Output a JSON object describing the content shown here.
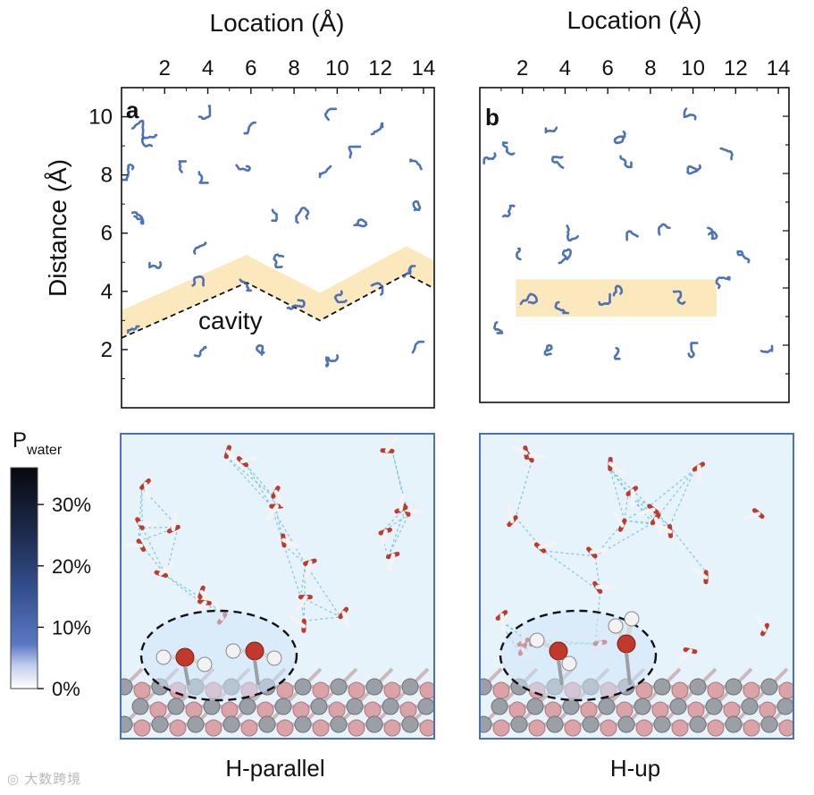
{
  "top_axis_title": "Location (Å)",
  "left_axis_title": "Distance (Å)",
  "panel_a": {
    "letter": "a",
    "x_ticks": [
      "2",
      "4",
      "6",
      "8",
      "10",
      "12",
      "14"
    ],
    "y_ticks": [
      "2",
      "4",
      "6",
      "8",
      "10"
    ],
    "annotation": "cavity"
  },
  "panel_b": {
    "letter": "b",
    "x_ticks": [
      "2",
      "4",
      "6",
      "8",
      "10",
      "12",
      "14"
    ]
  },
  "colorbar": {
    "title": "P",
    "title_sub": "water",
    "ticks": [
      "30%",
      "20%",
      "10%",
      "0%"
    ]
  },
  "bottom_labels": [
    "H-parallel",
    "H-up"
  ],
  "watermark": "大数跨境",
  "colors": {
    "trajectory": "#3b63b3",
    "highlight_band": "#fbe8bd",
    "snapshot_bg": "#e6f3fb",
    "panel_border": "#4a6fbf",
    "oxygen": "#c0392b",
    "hydrogen": "#f2f2f2",
    "surface_atom_gray": "#9aa0a6",
    "surface_atom_pink": "#d9a3a8"
  },
  "chart_data": [
    {
      "type": "scatter",
      "panel": "a",
      "title": "",
      "xlabel": "Location (Å)",
      "ylabel": "Distance (Å)",
      "xlim": [
        0,
        14.5
      ],
      "ylim": [
        0,
        11
      ],
      "series": [
        {
          "name": "water trajectories",
          "points": [
            [
              0.5,
              9.6
            ],
            [
              1.4,
              9.0
            ],
            [
              3.6,
              10.0
            ],
            [
              6.2,
              9.8
            ],
            [
              9.6,
              9.9
            ],
            [
              11.6,
              9.4
            ],
            [
              0.5,
              8.2
            ],
            [
              2.8,
              8.1
            ],
            [
              3.6,
              8.1
            ],
            [
              5.8,
              8.3
            ],
            [
              9.7,
              8.3
            ],
            [
              10.6,
              8.6
            ],
            [
              13.9,
              8.2
            ],
            [
              0.5,
              6.7
            ],
            [
              7.0,
              6.8
            ],
            [
              8.6,
              6.5
            ],
            [
              10.9,
              6.3
            ],
            [
              13.8,
              6.8
            ],
            [
              1.8,
              5.0
            ],
            [
              3.4,
              5.3
            ],
            [
              7.5,
              5.2
            ],
            [
              3.3,
              4.2
            ],
            [
              5.5,
              4.4
            ],
            [
              8.2,
              3.7
            ],
            [
              10.2,
              4.0
            ],
            [
              11.6,
              4.2
            ],
            [
              13.1,
              4.5
            ],
            [
              0.8,
              2.8
            ],
            [
              3.4,
              1.8
            ],
            [
              6.6,
              1.9
            ],
            [
              10.0,
              1.8
            ],
            [
              13.5,
              1.9
            ]
          ]
        }
      ],
      "cavity_boundary": [
        [
          0,
          2.4
        ],
        [
          5.8,
          4.3
        ],
        [
          9.2,
          3.0
        ],
        [
          13.2,
          4.6
        ],
        [
          14.5,
          4.1
        ]
      ],
      "annotation": "cavity"
    },
    {
      "type": "scatter",
      "panel": "b",
      "title": "",
      "xlabel": "Location (Å)",
      "ylabel": "Distance (Å)",
      "xlim": [
        0,
        14.5
      ],
      "ylim": [
        0,
        11
      ],
      "series": [
        {
          "name": "water trajectories",
          "points": [
            [
              3.6,
              9.6
            ],
            [
              6.8,
              9.3
            ],
            [
              10.1,
              9.9
            ],
            [
              0.7,
              8.7
            ],
            [
              1.6,
              8.7
            ],
            [
              3.9,
              8.2
            ],
            [
              6.6,
              8.6
            ],
            [
              10.2,
              8.1
            ],
            [
              11.8,
              8.5
            ],
            [
              1.1,
              6.5
            ],
            [
              4.6,
              5.8
            ],
            [
              7.4,
              5.8
            ],
            [
              8.9,
              6.1
            ],
            [
              10.7,
              6.1
            ],
            [
              1.9,
              5.0
            ],
            [
              4.1,
              5.0
            ],
            [
              12.6,
              4.9
            ],
            [
              2.3,
              3.5
            ],
            [
              3.7,
              3.5
            ],
            [
              5.6,
              3.5
            ],
            [
              6.6,
              3.8
            ],
            [
              9.6,
              3.5
            ],
            [
              11.2,
              4.0
            ],
            [
              0.8,
              2.8
            ],
            [
              3.1,
              1.8
            ],
            [
              6.4,
              1.9
            ],
            [
              9.8,
              1.7
            ],
            [
              13.2,
              1.8
            ]
          ]
        }
      ],
      "highlight_band": {
        "x": [
          1.7,
          11.1
        ],
        "y": [
          3.0,
          4.3
        ]
      }
    },
    {
      "type": "heatmap",
      "panel": "colorbar",
      "title": "Pwater",
      "ylim": [
        0,
        36
      ],
      "ticks": [
        0,
        10,
        20,
        30
      ],
      "tick_unit": "%"
    }
  ]
}
